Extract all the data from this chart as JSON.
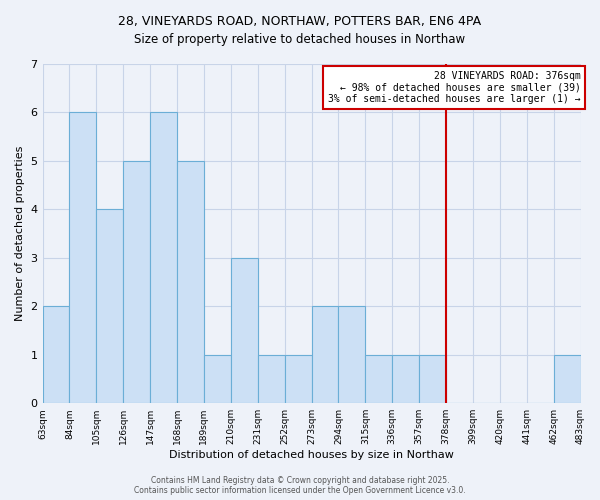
{
  "title_line1": "28, VINEYARDS ROAD, NORTHAW, POTTERS BAR, EN6 4PA",
  "title_line2": "Size of property relative to detached houses in Northaw",
  "xlabel": "Distribution of detached houses by size in Northaw",
  "ylabel": "Number of detached properties",
  "bins": [
    63,
    84,
    105,
    126,
    147,
    168,
    189,
    210,
    231,
    252,
    273,
    294,
    315,
    336,
    357,
    378,
    399,
    420,
    441,
    462,
    483
  ],
  "counts": [
    2,
    6,
    4,
    5,
    6,
    5,
    1,
    3,
    1,
    1,
    2,
    2,
    1,
    1,
    1,
    0,
    0,
    0,
    0,
    1
  ],
  "bar_color": "#cce0f5",
  "bar_edge_color": "#6baed6",
  "vline_x": 378,
  "vline_color": "#cc0000",
  "annotation_title": "28 VINEYARDS ROAD: 376sqm",
  "annotation_line1": "← 98% of detached houses are smaller (39)",
  "annotation_line2": "3% of semi-detached houses are larger (1) →",
  "annotation_box_color": "#ffffff",
  "annotation_border_color": "#cc0000",
  "ylim": [
    0,
    7
  ],
  "yticks": [
    0,
    1,
    2,
    3,
    4,
    5,
    6,
    7
  ],
  "footer_line1": "Contains HM Land Registry data © Crown copyright and database right 2025.",
  "footer_line2": "Contains public sector information licensed under the Open Government Licence v3.0.",
  "bg_color": "#eef2f9"
}
